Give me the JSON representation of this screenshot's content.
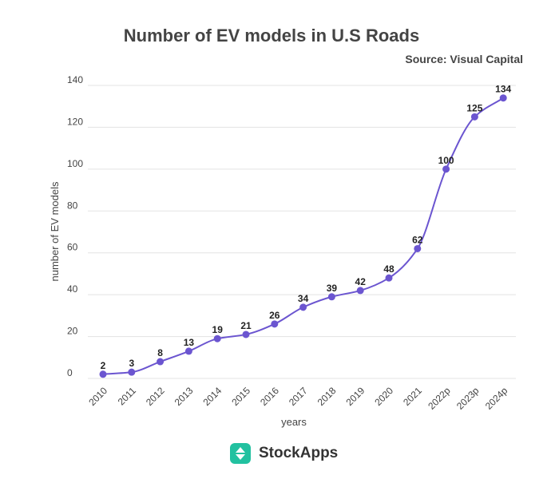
{
  "header": {
    "title": "Number of EV models in U.S Roads",
    "source": "Source: Visual Capital"
  },
  "brand": {
    "name": "StockApps",
    "accent": "#22c1a0"
  },
  "colors": {
    "line": "#6b55d0",
    "point": "#6b55d0",
    "grid": "#e3e3e3"
  },
  "chart_data": {
    "type": "line",
    "title": "Number of EV models in U.S Roads",
    "xlabel": "years",
    "ylabel": "number of EV models",
    "categories": [
      "2010",
      "2011",
      "2012",
      "2013",
      "2014",
      "2015",
      "2016",
      "2017",
      "2018",
      "2019",
      "2020",
      "2021",
      "2022p",
      "2023p",
      "2024p"
    ],
    "values": [
      2,
      3,
      8,
      13,
      19,
      21,
      26,
      34,
      39,
      42,
      48,
      62,
      100,
      125,
      134
    ],
    "ylim": [
      0,
      140
    ],
    "yticks": [
      0,
      20,
      40,
      60,
      80,
      100,
      120,
      140
    ],
    "grid": true,
    "data_labels": true,
    "smooth": true
  }
}
